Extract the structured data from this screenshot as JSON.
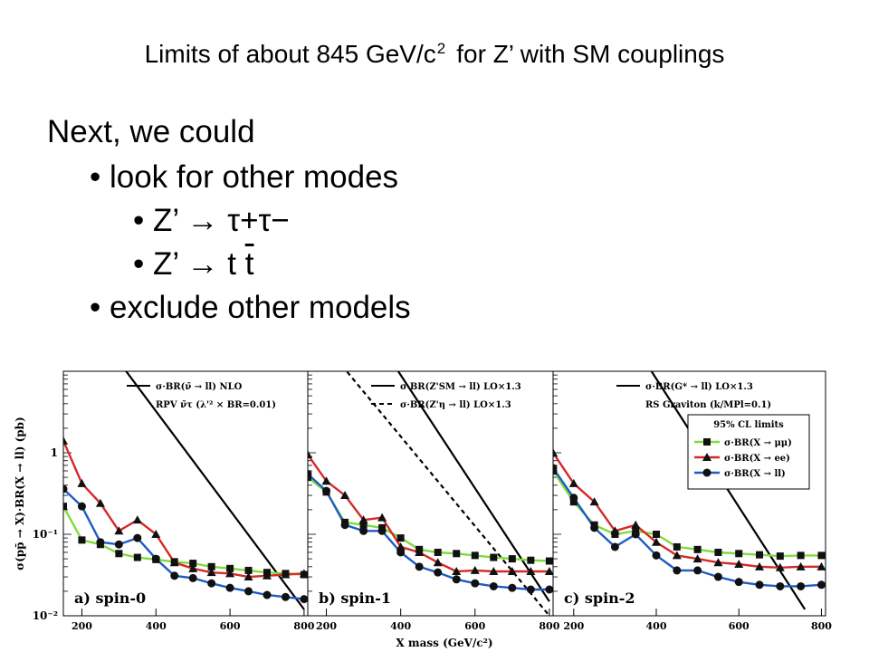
{
  "slide": {
    "title_text": "Limits of about 845 GeV/c",
    "title_sup": "2",
    "title_rest": "for Z’ with SM couplings",
    "lines": {
      "next": "Next, we could",
      "look": "• look for other modes",
      "tautau_prefix": "• Z’  →  ",
      "tautau_particles": "τ+τ−",
      "tt_prefix": "• Z’  → t ",
      "tt_bar": "t",
      "exclude": "• exclude other models"
    }
  },
  "chart_data": {
    "type": "line",
    "ylabel": "σ(pp̄ → X)·BR(X → ll) (pb)",
    "xlabel": "X mass (GeV/c²)",
    "x_range": [
      150,
      810
    ],
    "y_range": [
      0.01,
      10
    ],
    "y_scale": "log",
    "y_ticks": [
      {
        "value": 1,
        "label": "1"
      },
      {
        "value": 0.1,
        "label": "10⁻¹"
      },
      {
        "value": 0.01,
        "label": "10⁻²"
      }
    ],
    "x_tick_values": [
      200,
      400,
      600,
      800
    ],
    "x_tick_labels": [
      "200",
      "400",
      "600",
      "800"
    ],
    "series_colors": {
      "mumu": "#111111",
      "ee": "#d42a2a",
      "ll": "#1e5bc4",
      "mumu_line": "#7fdc3a"
    },
    "limit_mass": [
      150,
      200,
      250,
      300,
      350,
      400,
      450,
      500,
      550,
      600,
      650,
      700,
      750,
      800
    ],
    "panels": [
      {
        "panel_label": "a) spin-0",
        "legend": [
          "σ·BR(ν̃ → ll) NLO",
          "RPV ν̃τ (λ'² × BR=0.01)"
        ],
        "theory": [
          {
            "style": "solid",
            "x": [
              270,
              800
            ],
            "y": [
              20,
              0.012
            ]
          }
        ],
        "mumu": [
          0.22,
          0.085,
          0.075,
          0.058,
          0.052,
          0.049,
          0.046,
          0.044,
          0.04,
          0.038,
          0.036,
          0.034,
          0.033,
          0.032
        ],
        "ee": [
          1.4,
          0.42,
          0.24,
          0.11,
          0.15,
          0.1,
          0.045,
          0.038,
          0.034,
          0.033,
          0.03,
          0.031,
          0.032,
          0.033
        ],
        "ll": [
          0.36,
          0.22,
          0.08,
          0.075,
          0.09,
          0.05,
          0.031,
          0.029,
          0.025,
          0.022,
          0.02,
          0.018,
          0.017,
          0.016
        ]
      },
      {
        "panel_label": "b) spin-1",
        "legend": [
          "σ·BR(Z'SM → ll) LO×1.3",
          "σ·BR(Z'η → ll) LO×1.3"
        ],
        "theory": [
          {
            "style": "solid",
            "x": [
              350,
              800
            ],
            "y": [
              20,
              0.015
            ]
          },
          {
            "style": "dashed",
            "x": [
              200,
              800
            ],
            "y": [
              20,
              0.01
            ]
          }
        ],
        "mumu": [
          0.5,
          0.33,
          0.14,
          0.13,
          0.12,
          0.09,
          0.065,
          0.06,
          0.058,
          0.055,
          0.052,
          0.05,
          0.048,
          0.047
        ],
        "ee": [
          0.95,
          0.45,
          0.3,
          0.15,
          0.16,
          0.07,
          0.06,
          0.045,
          0.035,
          0.036,
          0.035,
          0.035,
          0.035,
          0.035
        ],
        "ll": [
          0.55,
          0.34,
          0.13,
          0.11,
          0.11,
          0.06,
          0.04,
          0.034,
          0.028,
          0.025,
          0.023,
          0.022,
          0.021,
          0.021
        ]
      },
      {
        "panel_label": "c) spin-2",
        "legend": [
          "σ·BR(G* → ll) LO×1.3",
          "RS Graviton (k/MPl=0.1)"
        ],
        "theory": [
          {
            "style": "solid",
            "x": [
              350,
              760
            ],
            "y": [
              20,
              0.012
            ]
          }
        ],
        "mumu": [
          0.6,
          0.25,
          0.13,
          0.1,
          0.11,
          0.1,
          0.07,
          0.065,
          0.06,
          0.058,
          0.056,
          0.054,
          0.055,
          0.055
        ],
        "ee": [
          1.0,
          0.42,
          0.25,
          0.11,
          0.13,
          0.08,
          0.055,
          0.05,
          0.045,
          0.043,
          0.04,
          0.039,
          0.04,
          0.04
        ],
        "ll": [
          0.65,
          0.28,
          0.12,
          0.07,
          0.1,
          0.055,
          0.036,
          0.036,
          0.03,
          0.026,
          0.024,
          0.023,
          0.023,
          0.024
        ]
      }
    ],
    "limits_legend_title": "95% CL limits",
    "limits_legend": [
      "σ·BR(X → μμ)",
      "σ·BR(X → ee)",
      "σ·BR(X → ll)"
    ]
  }
}
